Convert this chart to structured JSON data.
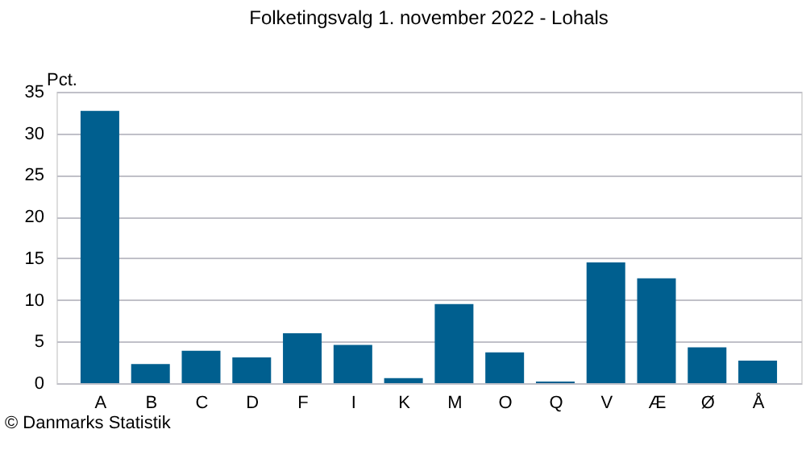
{
  "chart_data": {
    "type": "bar",
    "title": "Folketingsvalg 1. november 2022 - Lohals",
    "ylabel": "Pct.",
    "categories": [
      "A",
      "B",
      "C",
      "D",
      "F",
      "I",
      "K",
      "M",
      "O",
      "Q",
      "V",
      "Æ",
      "Ø",
      "Å"
    ],
    "values": [
      32.7,
      2.3,
      3.9,
      3.1,
      6.0,
      4.6,
      0.6,
      9.5,
      3.7,
      0.2,
      14.5,
      12.6,
      4.3,
      2.7
    ],
    "color": "#005f8f",
    "ylim": [
      0,
      35
    ],
    "yticks": [
      0,
      5,
      10,
      15,
      20,
      25,
      30,
      35
    ],
    "grid": "y",
    "annotations": [
      "© Danmarks Statistik"
    ]
  }
}
